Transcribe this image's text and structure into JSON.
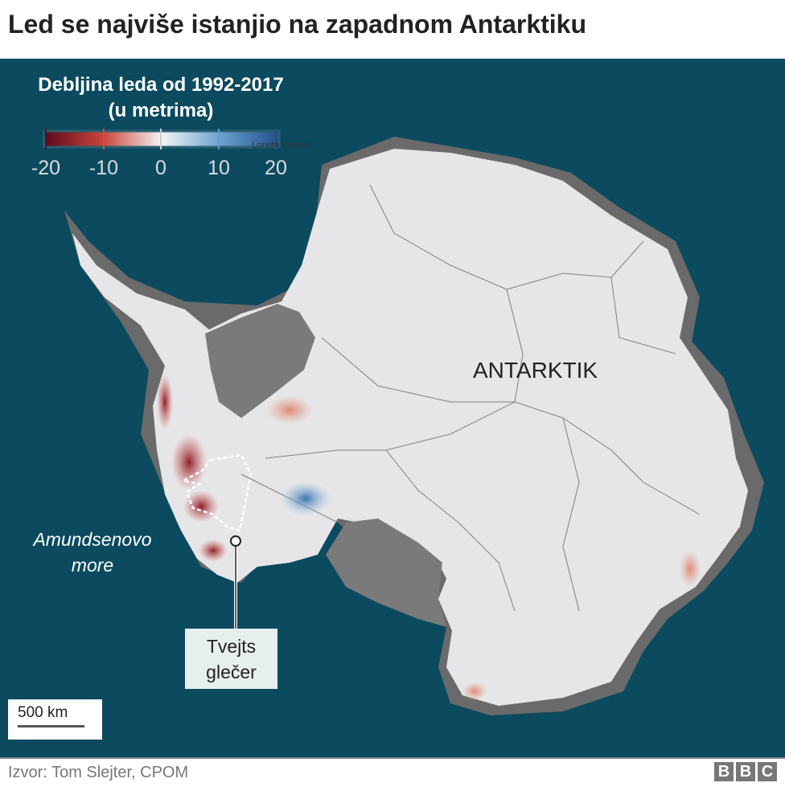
{
  "title": "Led se najviše istanjio na zapadnom Antarktiku",
  "legend": {
    "title_line1": "Debljina leda od 1992-2017",
    "title_line2": "(u metrima)",
    "ticks": [
      "-20",
      "-10",
      "0",
      "10",
      "20"
    ],
    "range": [
      -20,
      20
    ],
    "colors": [
      "#5c0a1e",
      "#c8443a",
      "#f4f4f4",
      "#6aa2cf",
      "#1f4f8a"
    ],
    "watermark": "Lorem Ipsum"
  },
  "map": {
    "region_label": "ANTARKTIK",
    "sea_label_line1": "Amundsenovo",
    "sea_label_line2": "more",
    "glacier_label_line1": "Tvejts",
    "glacier_label_line2": "glečer",
    "scale_label": "500 km",
    "ocean_color": "#0b4a5f"
  },
  "footer": {
    "source": "Izvor: Tom Slejter, CPOM",
    "logo": [
      "B",
      "B",
      "C"
    ]
  }
}
